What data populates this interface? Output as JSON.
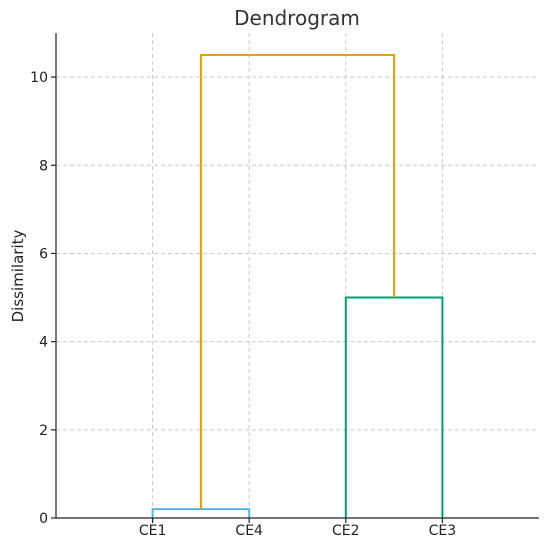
{
  "chart_data": {
    "type": "dendrogram",
    "title": "Dendrogram",
    "xlabel": "",
    "ylabel": "Dissimilarity",
    "leaves": [
      "CE1",
      "CE4",
      "CE2",
      "CE3"
    ],
    "ylim": [
      0,
      11
    ],
    "yticks": [
      0,
      2,
      4,
      6,
      8,
      10
    ],
    "grid": true,
    "links": [
      {
        "left_x": 0,
        "right_x": 1,
        "left_y": 0,
        "right_y": 0,
        "height": 0.2,
        "color": "#56B4E9"
      },
      {
        "left_x": 2,
        "right_x": 3,
        "left_y": 0,
        "right_y": 0,
        "height": 5.0,
        "color": "#009E73"
      },
      {
        "left_x": 0.5,
        "right_x": 2.5,
        "left_y": 0.2,
        "right_y": 5.0,
        "height": 10.5,
        "color": "#E69F00"
      }
    ]
  }
}
